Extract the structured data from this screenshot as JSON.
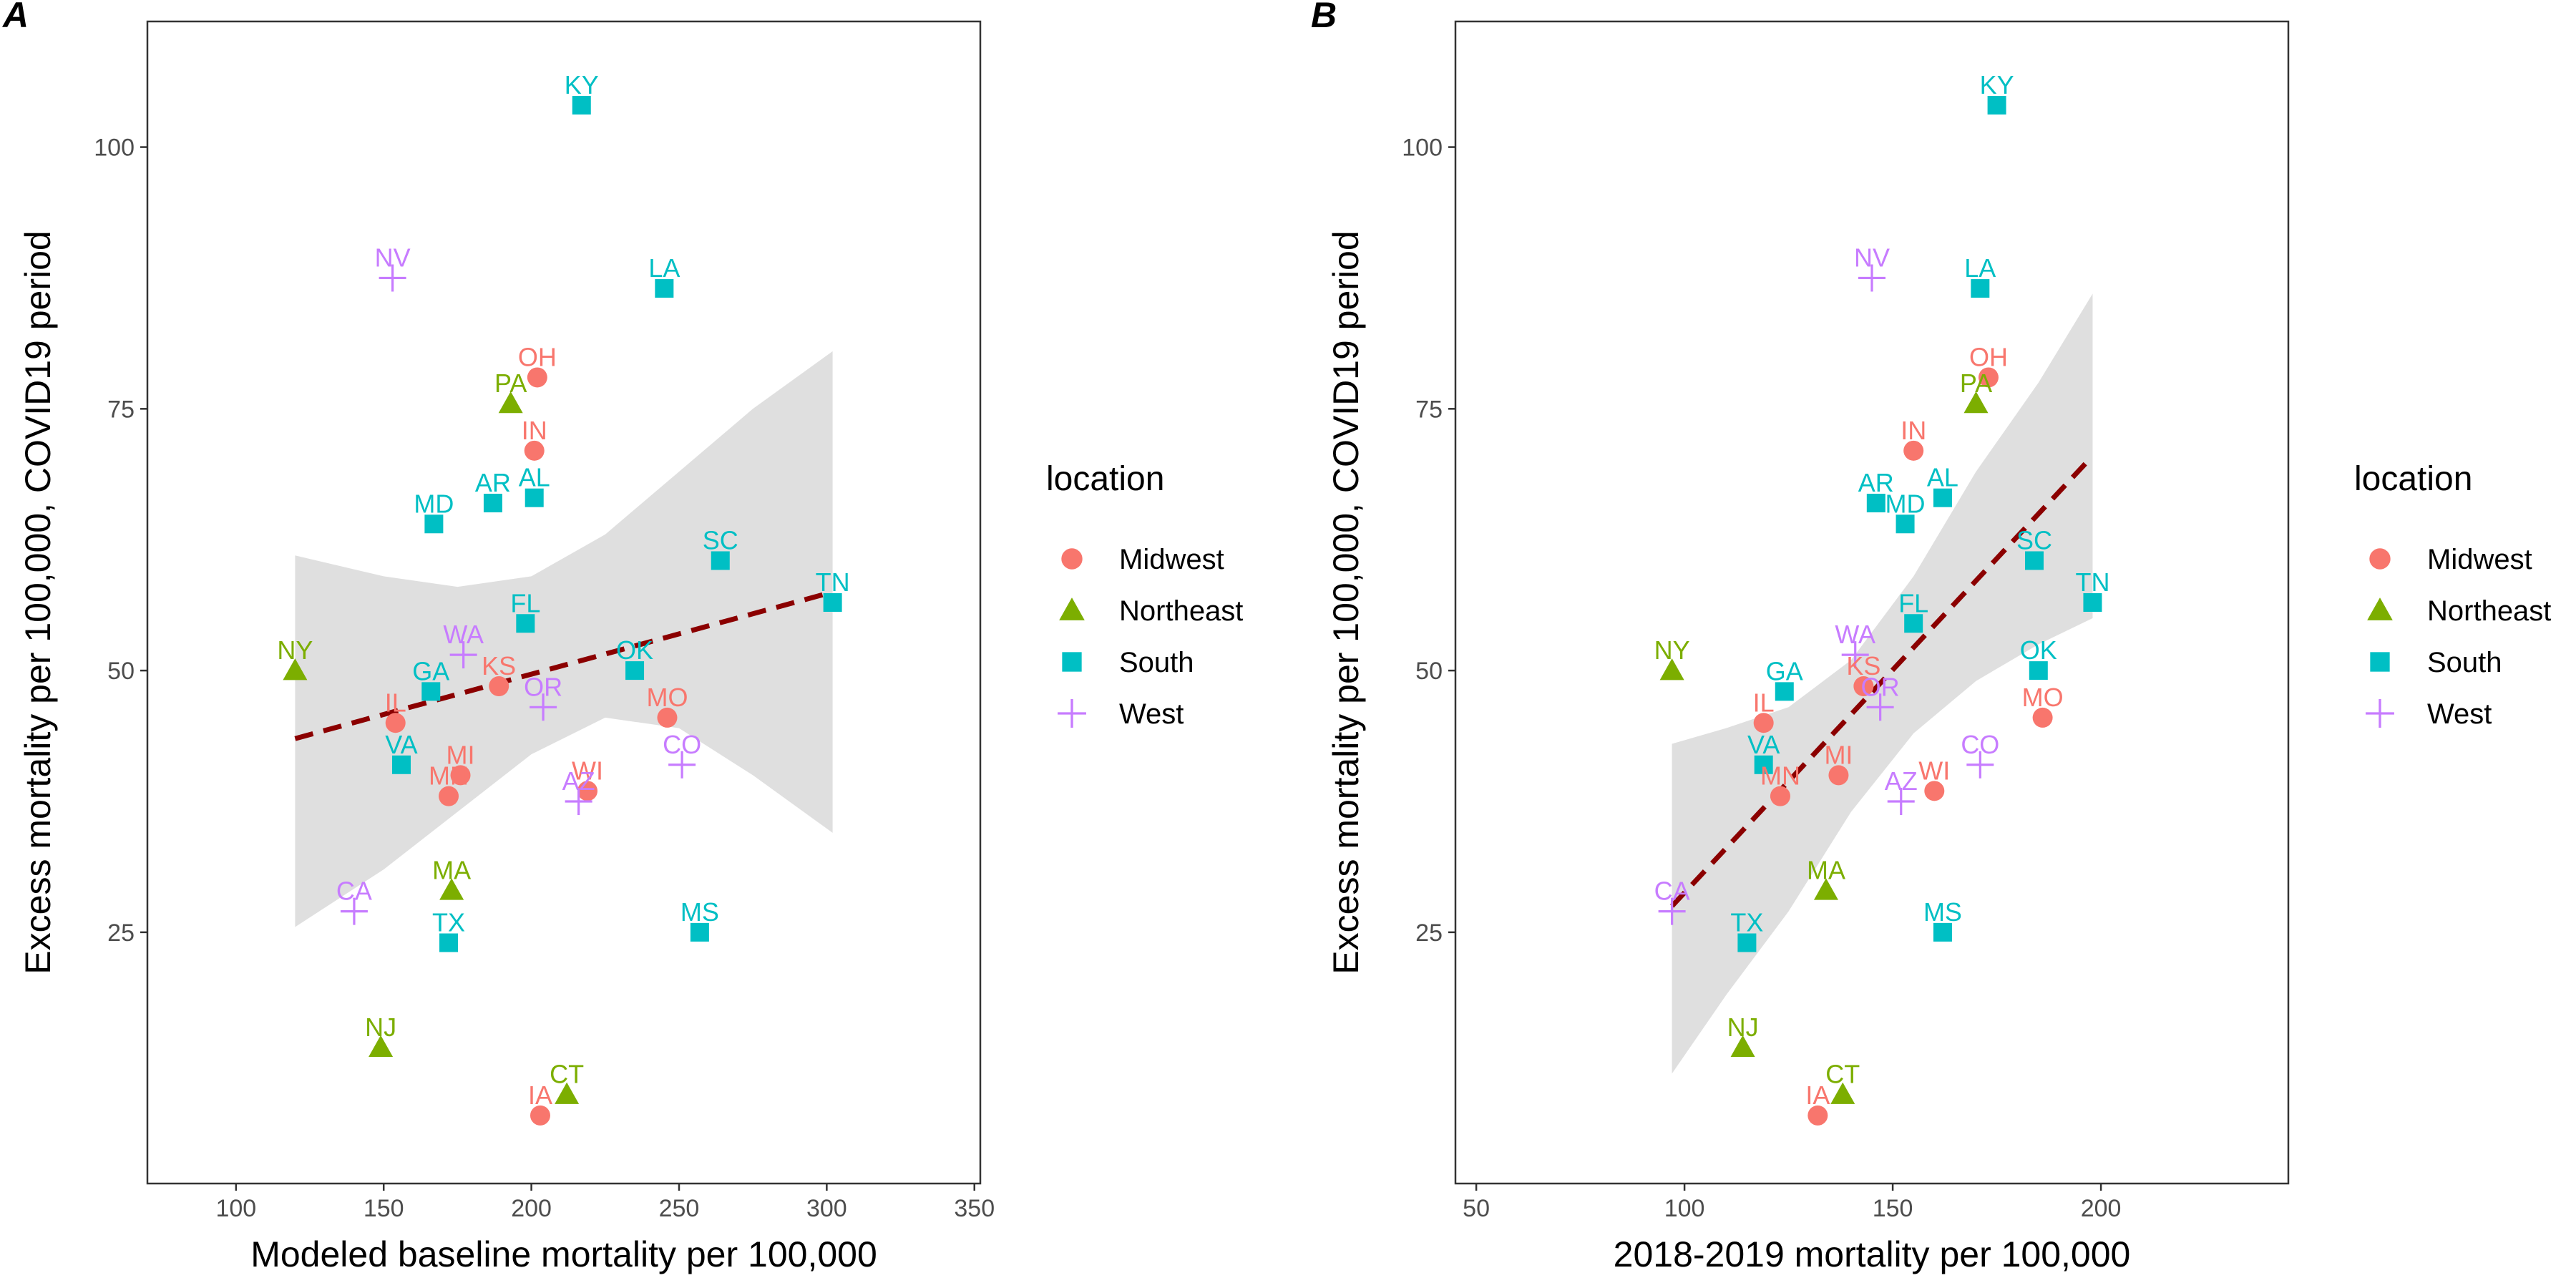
{
  "legend": {
    "title": "location",
    "entries": [
      {
        "name": "Midwest",
        "color": "#F8766D",
        "shape": "circle"
      },
      {
        "name": "Northeast",
        "color": "#7CAE00",
        "shape": "triangle"
      },
      {
        "name": "South",
        "color": "#00BFC4",
        "shape": "square"
      },
      {
        "name": "West",
        "color": "#C77CFF",
        "shape": "plus"
      }
    ]
  },
  "chart_data": [
    {
      "type": "scatter",
      "panel": "A",
      "xlabel": "Modeled baseline mortality per 100,000",
      "ylabel": "Excess mortality per 100,000, COVID19 period",
      "xlim": [
        70,
        352
      ],
      "ylim": [
        1,
        112
      ],
      "xticks": [
        100,
        150,
        200,
        250,
        300,
        350
      ],
      "yticks": [
        25,
        50,
        75,
        100
      ],
      "grid": false,
      "legend_position": "right",
      "trend": {
        "style": "dashed",
        "color": "#8B0000",
        "x": [
          120,
          302
        ],
        "y": [
          43.5,
          57.5
        ]
      },
      "band": {
        "color": "#d9d9d9",
        "upper": [
          [
            120,
            61
          ],
          [
            150,
            59
          ],
          [
            175,
            58
          ],
          [
            200,
            59
          ],
          [
            225,
            63
          ],
          [
            250,
            69
          ],
          [
            275,
            75
          ],
          [
            302,
            80.5
          ]
        ],
        "lower": [
          [
            302,
            34.5
          ],
          [
            275,
            40
          ],
          [
            250,
            44.5
          ],
          [
            225,
            45.5
          ],
          [
            200,
            42
          ],
          [
            175,
            36.5
          ],
          [
            150,
            31
          ],
          [
            120,
            25.5
          ]
        ]
      },
      "points": [
        {
          "label": "KY",
          "region": "South",
          "x": 217,
          "y": 104
        },
        {
          "label": "NV",
          "region": "West",
          "x": 153,
          "y": 87.5
        },
        {
          "label": "LA",
          "region": "South",
          "x": 245,
          "y": 86.5
        },
        {
          "label": "OH",
          "region": "Midwest",
          "x": 202,
          "y": 78
        },
        {
          "label": "PA",
          "region": "Northeast",
          "x": 193,
          "y": 75.5
        },
        {
          "label": "IN",
          "region": "Midwest",
          "x": 201,
          "y": 71
        },
        {
          "label": "AR",
          "region": "South",
          "x": 187,
          "y": 66
        },
        {
          "label": "AL",
          "region": "South",
          "x": 201,
          "y": 66.5
        },
        {
          "label": "MD",
          "region": "South",
          "x": 167,
          "y": 64
        },
        {
          "label": "SC",
          "region": "South",
          "x": 264,
          "y": 60.5
        },
        {
          "label": "TN",
          "region": "South",
          "x": 302,
          "y": 56.5
        },
        {
          "label": "FL",
          "region": "South",
          "x": 198,
          "y": 54.5
        },
        {
          "label": "WA",
          "region": "West",
          "x": 177,
          "y": 51.5
        },
        {
          "label": "NY",
          "region": "Northeast",
          "x": 120,
          "y": 50
        },
        {
          "label": "OK",
          "region": "South",
          "x": 235,
          "y": 50
        },
        {
          "label": "GA",
          "region": "South",
          "x": 166,
          "y": 48
        },
        {
          "label": "KS",
          "region": "Midwest",
          "x": 189,
          "y": 48.5
        },
        {
          "label": "OR",
          "region": "West",
          "x": 204,
          "y": 46.5
        },
        {
          "label": "MO",
          "region": "Midwest",
          "x": 246,
          "y": 45.5
        },
        {
          "label": "IL",
          "region": "Midwest",
          "x": 154,
          "y": 45
        },
        {
          "label": "VA",
          "region": "South",
          "x": 156,
          "y": 41
        },
        {
          "label": "CO",
          "region": "West",
          "x": 251,
          "y": 41
        },
        {
          "label": "MI",
          "region": "Midwest",
          "x": 176,
          "y": 40
        },
        {
          "label": "MN",
          "region": "Midwest",
          "x": 172,
          "y": 38
        },
        {
          "label": "WI",
          "region": "Midwest",
          "x": 219,
          "y": 38.5
        },
        {
          "label": "AZ",
          "region": "West",
          "x": 216,
          "y": 37.5
        },
        {
          "label": "MA",
          "region": "Northeast",
          "x": 173,
          "y": 29
        },
        {
          "label": "CA",
          "region": "West",
          "x": 140,
          "y": 27
        },
        {
          "label": "MS",
          "region": "South",
          "x": 257,
          "y": 25
        },
        {
          "label": "TX",
          "region": "South",
          "x": 172,
          "y": 24
        },
        {
          "label": "NJ",
          "region": "Northeast",
          "x": 149,
          "y": 14
        },
        {
          "label": "CT",
          "region": "Northeast",
          "x": 212,
          "y": 9.5
        },
        {
          "label": "IA",
          "region": "Midwest",
          "x": 203,
          "y": 7.5
        }
      ]
    },
    {
      "type": "scatter",
      "panel": "B",
      "xlabel": "2018-2019 mortality per 100,000",
      "ylabel": "Excess mortality per 100,000, COVID19 period",
      "xlim": [
        45,
        245
      ],
      "ylim": [
        1,
        112
      ],
      "xticks": [
        50,
        100,
        150,
        200
      ],
      "yticks": [
        25,
        50,
        75,
        100
      ],
      "grid": false,
      "legend_position": "right",
      "trend": {
        "style": "dashed",
        "color": "#8B0000",
        "x": [
          97,
          198
        ],
        "y": [
          27.5,
          70.5
        ]
      },
      "band": {
        "color": "#d9d9d9",
        "upper": [
          [
            97,
            43
          ],
          [
            110,
            44.5
          ],
          [
            125,
            46.5
          ],
          [
            140,
            51
          ],
          [
            155,
            59
          ],
          [
            170,
            69
          ],
          [
            185,
            77.5
          ],
          [
            198,
            86
          ]
        ],
        "lower": [
          [
            198,
            55
          ],
          [
            185,
            52.5
          ],
          [
            170,
            49
          ],
          [
            155,
            44
          ],
          [
            140,
            36.5
          ],
          [
            125,
            27
          ],
          [
            110,
            19
          ],
          [
            97,
            11.5
          ]
        ]
      },
      "points": [
        {
          "label": "KY",
          "region": "South",
          "x": 175,
          "y": 104
        },
        {
          "label": "NV",
          "region": "West",
          "x": 145,
          "y": 87.5
        },
        {
          "label": "LA",
          "region": "South",
          "x": 171,
          "y": 86.5
        },
        {
          "label": "OH",
          "region": "Midwest",
          "x": 173,
          "y": 78
        },
        {
          "label": "PA",
          "region": "Northeast",
          "x": 170,
          "y": 75.5
        },
        {
          "label": "IN",
          "region": "Midwest",
          "x": 155,
          "y": 71
        },
        {
          "label": "AR",
          "region": "South",
          "x": 146,
          "y": 66
        },
        {
          "label": "AL",
          "region": "South",
          "x": 162,
          "y": 66.5
        },
        {
          "label": "MD",
          "region": "South",
          "x": 153,
          "y": 64
        },
        {
          "label": "SC",
          "region": "South",
          "x": 184,
          "y": 60.5
        },
        {
          "label": "TN",
          "region": "South",
          "x": 198,
          "y": 56.5
        },
        {
          "label": "FL",
          "region": "South",
          "x": 155,
          "y": 54.5
        },
        {
          "label": "WA",
          "region": "West",
          "x": 141,
          "y": 51.5
        },
        {
          "label": "NY",
          "region": "Northeast",
          "x": 97,
          "y": 50
        },
        {
          "label": "OK",
          "region": "South",
          "x": 185,
          "y": 50
        },
        {
          "label": "GA",
          "region": "South",
          "x": 124,
          "y": 48
        },
        {
          "label": "KS",
          "region": "Midwest",
          "x": 143,
          "y": 48.5
        },
        {
          "label": "OR",
          "region": "West",
          "x": 147,
          "y": 46.5
        },
        {
          "label": "MO",
          "region": "Midwest",
          "x": 186,
          "y": 45.5
        },
        {
          "label": "IL",
          "region": "Midwest",
          "x": 119,
          "y": 45
        },
        {
          "label": "VA",
          "region": "South",
          "x": 119,
          "y": 41
        },
        {
          "label": "CO",
          "region": "West",
          "x": 171,
          "y": 41
        },
        {
          "label": "MI",
          "region": "Midwest",
          "x": 137,
          "y": 40
        },
        {
          "label": "MN",
          "region": "Midwest",
          "x": 123,
          "y": 38
        },
        {
          "label": "WI",
          "region": "Midwest",
          "x": 160,
          "y": 38.5
        },
        {
          "label": "AZ",
          "region": "West",
          "x": 152,
          "y": 37.5
        },
        {
          "label": "MA",
          "region": "Northeast",
          "x": 134,
          "y": 29
        },
        {
          "label": "CA",
          "region": "West",
          "x": 97,
          "y": 27
        },
        {
          "label": "MS",
          "region": "South",
          "x": 162,
          "y": 25
        },
        {
          "label": "TX",
          "region": "South",
          "x": 115,
          "y": 24
        },
        {
          "label": "NJ",
          "region": "Northeast",
          "x": 114,
          "y": 14
        },
        {
          "label": "CT",
          "region": "Northeast",
          "x": 138,
          "y": 9.5
        },
        {
          "label": "IA",
          "region": "Midwest",
          "x": 132,
          "y": 7.5
        }
      ]
    }
  ]
}
